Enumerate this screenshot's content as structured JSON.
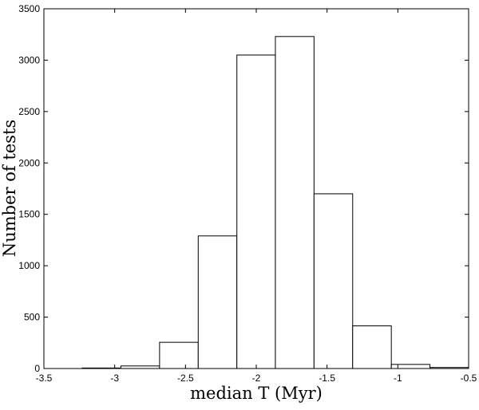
{
  "chart_data": {
    "type": "histogram",
    "bins": [
      -3.229,
      -2.956,
      -2.683,
      -2.41,
      -2.137,
      -1.865,
      -1.592,
      -1.319,
      -1.046,
      -0.773,
      -0.5
    ],
    "values": [
      5,
      25,
      255,
      1290,
      3050,
      3230,
      1700,
      415,
      40,
      10
    ],
    "color": "#ffffff",
    "x_label": "median T (Myr)",
    "y_label": "Number of tests",
    "xlim": [
      -3.5,
      -0.5
    ],
    "xticks": [
      -3.5,
      -3,
      -2.5,
      -2,
      -1.5,
      -1,
      -0.5
    ],
    "ylim": [
      0,
      3500
    ],
    "yticks": [
      0,
      500,
      1000,
      1500,
      2000,
      2500,
      3000,
      3500
    ],
    "grid": false
  }
}
